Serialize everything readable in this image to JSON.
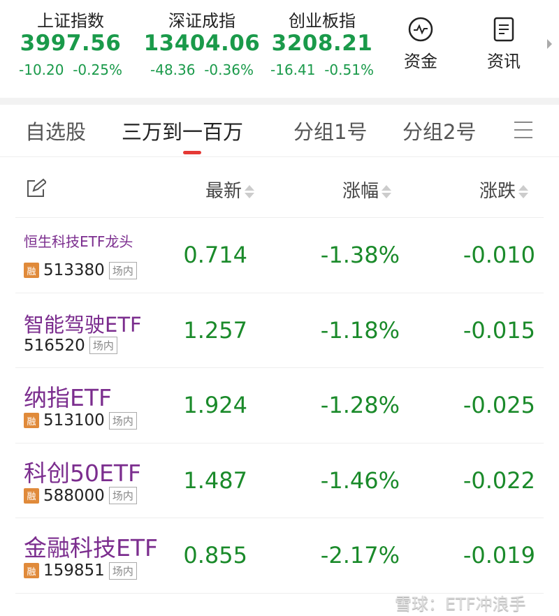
{
  "indices": [
    {
      "name": "上证指数",
      "value": "3997.56",
      "change": "-10.20",
      "pct": "-0.25%"
    },
    {
      "name": "深证成指",
      "value": "13404.06",
      "change": "-48.36",
      "pct": "-0.36%"
    },
    {
      "name": "创业板指",
      "value": "3208.21",
      "change": "-16.41",
      "pct": "-0.51%"
    }
  ],
  "tools": {
    "funds": "资金",
    "news": "资讯"
  },
  "tabs": [
    "自选股",
    "三万到一百万",
    "分组1号",
    "分组2号"
  ],
  "header": {
    "latest": "最新",
    "pct": "涨幅",
    "change": "涨跌"
  },
  "rows": [
    {
      "name": "恒生科技ETF龙头",
      "margin": "融",
      "code": "513380",
      "market": "场内",
      "price": "0.714",
      "pct": "-1.38%",
      "change": "-0.010"
    },
    {
      "name": "智能驾驶ETF",
      "margin": "",
      "code": "516520",
      "market": "场内",
      "price": "1.257",
      "pct": "-1.18%",
      "change": "-0.015"
    },
    {
      "name": "纳指ETF",
      "margin": "融",
      "code": "513100",
      "market": "场内",
      "price": "1.924",
      "pct": "-1.28%",
      "change": "-0.025"
    },
    {
      "name": "科创50ETF",
      "margin": "融",
      "code": "588000",
      "market": "场内",
      "price": "1.487",
      "pct": "-1.46%",
      "change": "-0.022"
    },
    {
      "name": "金融科技ETF",
      "margin": "融",
      "code": "159851",
      "market": "场内",
      "price": "0.855",
      "pct": "-2.17%",
      "change": "-0.019"
    }
  ],
  "watermark": "雪球：ETF冲浪手",
  "colors": {
    "down": "#1a9a4a",
    "name": "#7b2d8e",
    "accent": "#e53935"
  }
}
